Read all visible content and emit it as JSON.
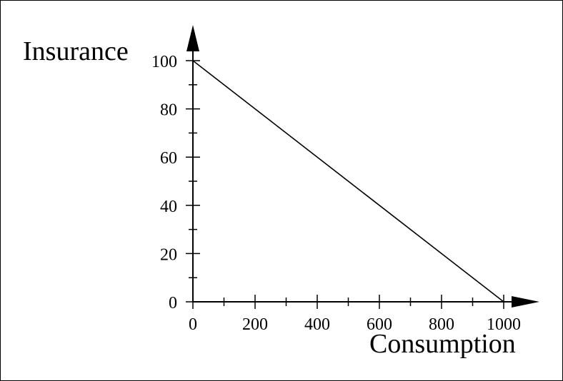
{
  "chart_data": {
    "type": "line",
    "title": "",
    "xlabel": "Consumption",
    "ylabel": "Insurance",
    "xlim": [
      0,
      1000
    ],
    "ylim": [
      0,
      100
    ],
    "x_ticks": [
      0,
      200,
      400,
      600,
      800,
      1000
    ],
    "y_ticks": [
      0,
      20,
      40,
      60,
      80,
      100
    ],
    "x_tick_labels": [
      "0",
      "200",
      "400",
      "600",
      "800",
      "1000"
    ],
    "y_tick_labels": [
      "0",
      "20",
      "40",
      "60",
      "80",
      "100"
    ],
    "grid": false,
    "series": [
      {
        "x": [
          0,
          1000
        ],
        "y": [
          100,
          0
        ],
        "color": "#000000"
      }
    ]
  }
}
